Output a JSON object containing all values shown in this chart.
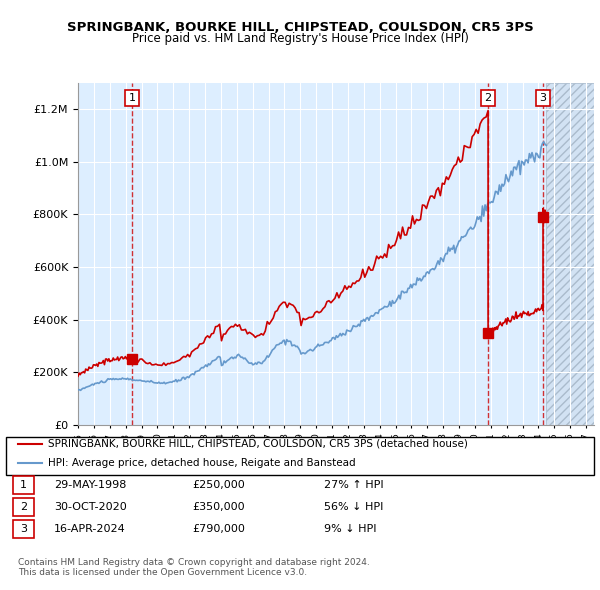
{
  "title1": "SPRINGBANK, BOURKE HILL, CHIPSTEAD, COULSDON, CR5 3PS",
  "title2": "Price paid vs. HM Land Registry's House Price Index (HPI)",
  "legend_line1": "SPRINGBANK, BOURKE HILL, CHIPSTEAD, COULSDON, CR5 3PS (detached house)",
  "legend_line2": "HPI: Average price, detached house, Reigate and Banstead",
  "sale1_label": "1",
  "sale1_date": "29-MAY-1998",
  "sale1_price": "£250,000",
  "sale1_hpi": "27% ↑ HPI",
  "sale1_year": 1998.4,
  "sale1_value": 250000,
  "sale2_label": "2",
  "sale2_date": "30-OCT-2020",
  "sale2_price": "£350,000",
  "sale2_hpi": "56% ↓ HPI",
  "sale2_year": 2020.83,
  "sale2_value": 350000,
  "sale3_label": "3",
  "sale3_date": "16-APR-2024",
  "sale3_price": "£790,000",
  "sale3_hpi": "9% ↓ HPI",
  "sale3_year": 2024.29,
  "sale3_value": 790000,
  "footer": "Contains HM Land Registry data © Crown copyright and database right 2024.\nThis data is licensed under the Open Government Licence v3.0.",
  "hpi_color": "#6699cc",
  "price_color": "#cc0000",
  "bg_color": "#ddeeff",
  "grid_color": "#ffffff",
  "future_hatch_color": "#bbccdd",
  "ylim": [
    0,
    1300000
  ],
  "xlim_start": 1995.0,
  "xlim_end": 2027.5,
  "future_start": 2024.5
}
